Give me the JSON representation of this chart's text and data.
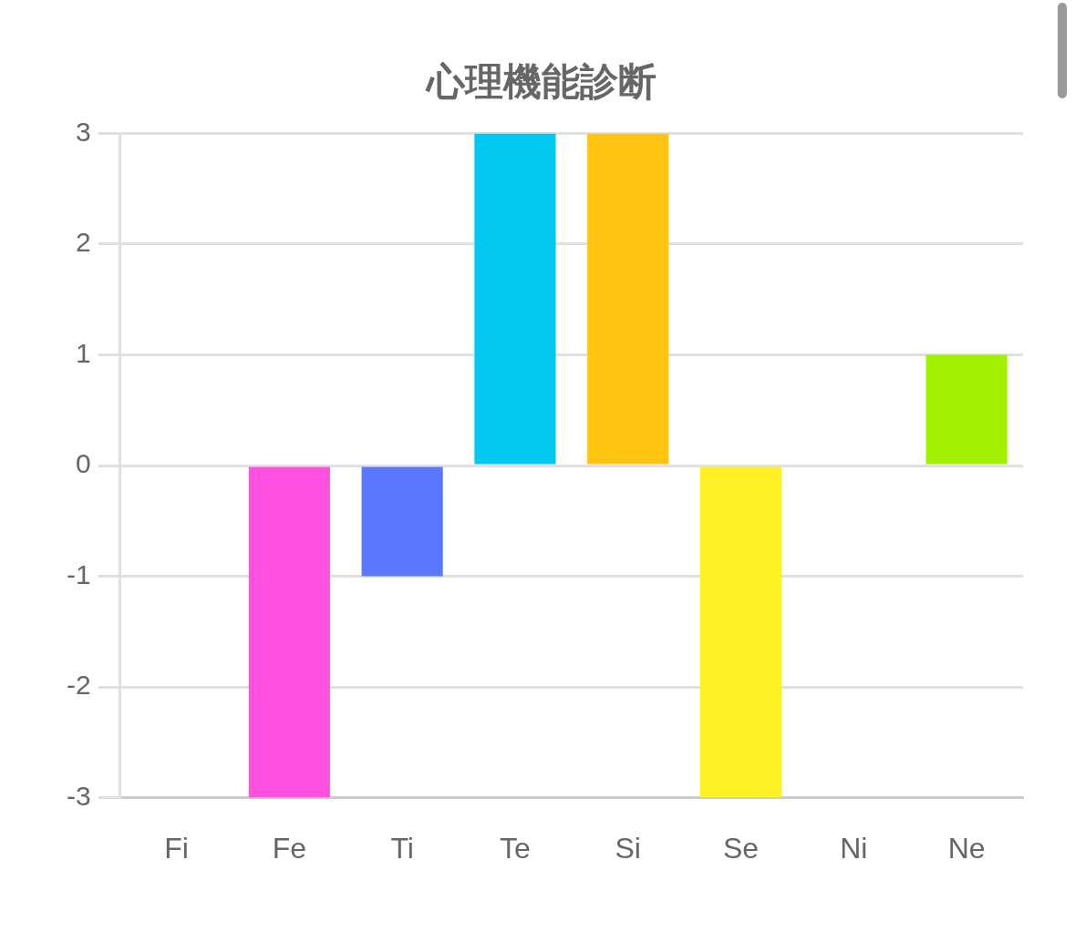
{
  "chart_data": {
    "type": "bar",
    "title": "心理機能診断",
    "categories": [
      "Fi",
      "Fe",
      "Ti",
      "Te",
      "Si",
      "Se",
      "Ni",
      "Ne"
    ],
    "values": [
      0,
      -3,
      -1,
      3,
      3,
      -3,
      0,
      1
    ],
    "colors": [
      null,
      "#ff50e0",
      "#5a78ff",
      "#00c8f0",
      "#ffc312",
      "#fff024",
      null,
      "#a0f000"
    ],
    "ylim": [
      -3,
      3
    ],
    "yticks": [
      -3,
      -2,
      -1,
      0,
      1,
      2,
      3
    ],
    "grid": "y"
  }
}
